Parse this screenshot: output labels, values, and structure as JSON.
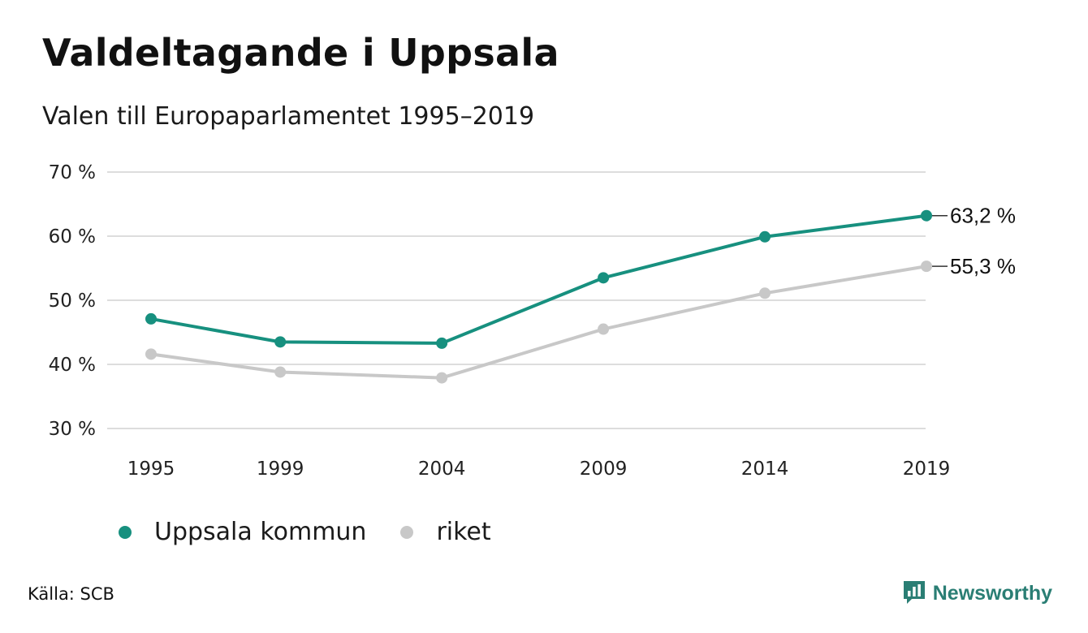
{
  "header": {
    "title": "Valdeltagande i Uppsala",
    "subtitle": "Valen till Europaparlamentet 1995–2019"
  },
  "colors": {
    "uppsala": "#17907f",
    "riket": "#c8c8c8",
    "grid": "#dddddd",
    "logo": "#2a7e74"
  },
  "chart_data": {
    "type": "line",
    "title": "Valdeltagande i Uppsala",
    "subtitle": "Valen till Europaparlamentet 1995–2019",
    "x": [
      1995,
      1999,
      2004,
      2009,
      2014,
      2019
    ],
    "x_tick_labels": [
      "1995",
      "1999",
      "2004",
      "2009",
      "2014",
      "2019"
    ],
    "y_ticks": [
      30,
      40,
      50,
      60,
      70
    ],
    "y_tick_labels": [
      "30 %",
      "40 %",
      "50 %",
      "60 %",
      "70 %"
    ],
    "ylim": [
      30,
      70
    ],
    "grid": true,
    "legend_position": "bottom-left",
    "series": [
      {
        "name": "Uppsala kommun",
        "color": "#17907f",
        "values": [
          47.1,
          43.5,
          43.3,
          53.5,
          59.9,
          63.2
        ],
        "end_label": "63,2 %"
      },
      {
        "name": "riket",
        "color": "#c8c8c8",
        "values": [
          41.6,
          38.8,
          37.9,
          45.5,
          51.1,
          55.3
        ],
        "end_label": "55,3 %"
      }
    ]
  },
  "legend": {
    "items": [
      "Uppsala kommun",
      "riket"
    ]
  },
  "footer": {
    "source": "Källa: SCB",
    "brand": "Newsworthy"
  }
}
